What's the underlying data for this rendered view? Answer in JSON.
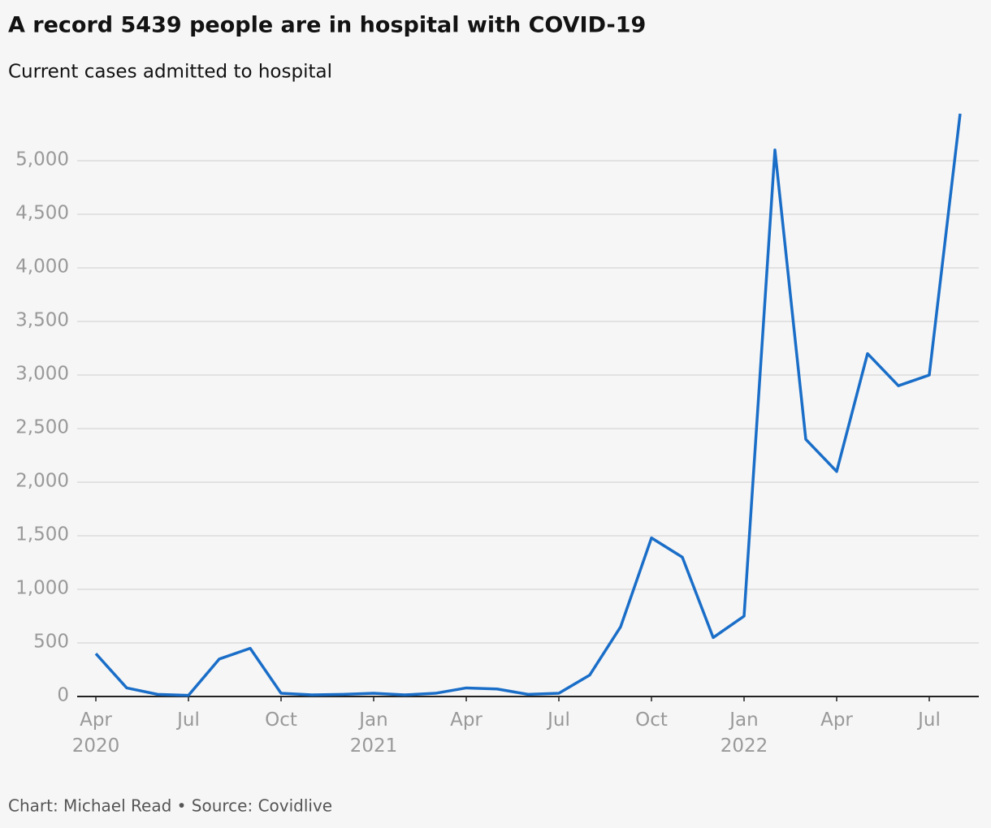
{
  "chart_data": {
    "type": "line",
    "title": "A record 5439 people are in hospital with COVID-19",
    "subtitle": "Current cases admitted to hospital",
    "source": "Chart: Michael Read • Source: Covidlive",
    "x": [
      "2020-04",
      "2020-05",
      "2020-06",
      "2020-07",
      "2020-08",
      "2020-09",
      "2020-10",
      "2020-11",
      "2020-12",
      "2021-01",
      "2021-02",
      "2021-03",
      "2021-04",
      "2021-05",
      "2021-06",
      "2021-07",
      "2021-08",
      "2021-09",
      "2021-10",
      "2021-11",
      "2021-12",
      "2022-01",
      "2022-02",
      "2022-03",
      "2022-04",
      "2022-05",
      "2022-06",
      "2022-07",
      "2022-08"
    ],
    "series": [
      {
        "name": "Current cases admitted to hospital",
        "color": "#1a6ec8",
        "values": [
          400,
          80,
          20,
          10,
          350,
          450,
          30,
          15,
          20,
          30,
          15,
          30,
          80,
          70,
          20,
          30,
          200,
          650,
          1480,
          1300,
          550,
          750,
          5100,
          2400,
          2100,
          3200,
          2900,
          3000,
          5439
        ]
      }
    ],
    "ylim": [
      0,
      5500
    ],
    "yticks": [
      0,
      500,
      {
        "value": 1000,
        "label": "1,000"
      },
      {
        "value": 1500,
        "label": "1,500"
      },
      {
        "value": 2000,
        "label": "2,000"
      },
      {
        "value": 2500,
        "label": "2,500"
      },
      {
        "value": 3000,
        "label": "3,000"
      },
      {
        "value": 3500,
        "label": "3,500"
      },
      {
        "value": 4000,
        "label": "4,000"
      },
      {
        "value": 4500,
        "label": "4,500"
      },
      {
        "value": 5000,
        "label": "5,000"
      }
    ],
    "xticks": [
      {
        "value": "2020-04",
        "label": "Apr 2020"
      },
      {
        "value": "2020-07",
        "label": "Jul"
      },
      {
        "value": "2020-10",
        "label": "Oct"
      },
      {
        "value": "2021-01",
        "label": "Jan 2021"
      },
      {
        "value": "2021-04",
        "label": "Apr"
      },
      {
        "value": "2021-07",
        "label": "Jul"
      },
      {
        "value": "2021-10",
        "label": "Oct"
      },
      {
        "value": "2022-01",
        "label": "Jan 2022"
      },
      {
        "value": "2022-04",
        "label": "Apr"
      },
      {
        "value": "2022-07",
        "label": "Jul"
      }
    ],
    "grid": true
  }
}
